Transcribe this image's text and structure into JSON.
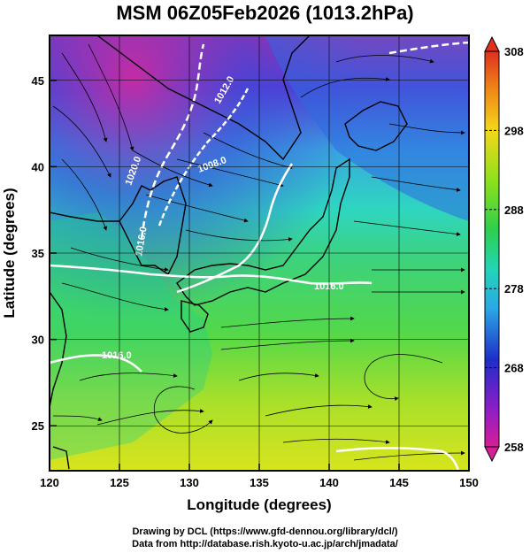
{
  "title": "MSM 06Z05Feb2026 (1013.2hPa)",
  "x_axis": {
    "label": "Longitude (degrees)",
    "range": [
      120,
      150
    ],
    "ticks": [
      "120",
      "125",
      "130",
      "135",
      "140",
      "145",
      "150"
    ]
  },
  "y_axis": {
    "label": "Latitude  (degrees)",
    "range": [
      22.4,
      47.6
    ],
    "ticks": [
      "25",
      "30",
      "35",
      "40",
      "45"
    ]
  },
  "colorbar": {
    "range": [
      258,
      308
    ],
    "ticks": [
      "308",
      "298",
      "288",
      "278",
      "268",
      "258"
    ]
  },
  "contour_labels": [
    "1012.0",
    "1020.0",
    "1008.0",
    "1016.0",
    "1016.0",
    "1016.0"
  ],
  "credits": {
    "line1": "Drawing by DCL (https://www.gfd-dennou.org/library/dcl/)",
    "line2": "Data from http://database.rish.kyoto-u.ac.jp/arch/jmadata/"
  }
}
